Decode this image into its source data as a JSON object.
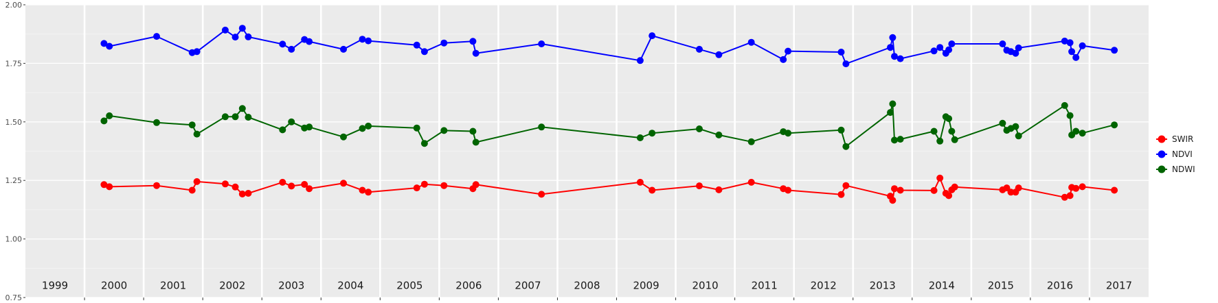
{
  "chart_data": {
    "type": "line",
    "title": "",
    "xlabel": "",
    "ylabel": "",
    "ylim": [
      0.75,
      2.0
    ],
    "y_ticks": [
      "0.75",
      "1.00",
      "1.25",
      "1.50",
      "1.75",
      "2.00"
    ],
    "xlim": [
      1999.0,
      2018.0
    ],
    "year_labels": [
      "1999",
      "2000",
      "2001",
      "2002",
      "2003",
      "2004",
      "2005",
      "2006",
      "2007",
      "2008",
      "2009",
      "2010",
      "2011",
      "2012",
      "2013",
      "2014",
      "2015",
      "2016",
      "2017"
    ],
    "grid": true,
    "legend_position": "right",
    "series": [
      {
        "name": "SWIR",
        "color": "#ff0000",
        "points": [
          [
            2000.33,
            1.232
          ],
          [
            2000.42,
            1.223
          ],
          [
            2001.22,
            1.228
          ],
          [
            2001.82,
            1.208
          ],
          [
            2001.9,
            1.245
          ],
          [
            2002.38,
            1.235
          ],
          [
            2002.55,
            1.222
          ],
          [
            2002.67,
            1.192
          ],
          [
            2002.77,
            1.195
          ],
          [
            2003.35,
            1.242
          ],
          [
            2003.5,
            1.226
          ],
          [
            2003.72,
            1.233
          ],
          [
            2003.8,
            1.215
          ],
          [
            2004.38,
            1.238
          ],
          [
            2004.7,
            1.208
          ],
          [
            2004.8,
            1.2
          ],
          [
            2005.62,
            1.218
          ],
          [
            2005.75,
            1.234
          ],
          [
            2006.08,
            1.228
          ],
          [
            2006.57,
            1.215
          ],
          [
            2006.62,
            1.232
          ],
          [
            2007.73,
            1.191
          ],
          [
            2009.4,
            1.242
          ],
          [
            2009.6,
            1.208
          ],
          [
            2010.4,
            1.227
          ],
          [
            2010.73,
            1.21
          ],
          [
            2011.28,
            1.242
          ],
          [
            2011.82,
            1.215
          ],
          [
            2011.9,
            1.208
          ],
          [
            2012.8,
            1.19
          ],
          [
            2012.88,
            1.228
          ],
          [
            2013.63,
            1.183
          ],
          [
            2013.67,
            1.165
          ],
          [
            2013.7,
            1.215
          ],
          [
            2013.8,
            1.208
          ],
          [
            2014.37,
            1.207
          ],
          [
            2014.47,
            1.26
          ],
          [
            2014.57,
            1.195
          ],
          [
            2014.62,
            1.185
          ],
          [
            2014.67,
            1.21
          ],
          [
            2014.72,
            1.222
          ],
          [
            2015.53,
            1.21
          ],
          [
            2015.6,
            1.218
          ],
          [
            2015.67,
            1.2
          ],
          [
            2015.75,
            1.2
          ],
          [
            2015.8,
            1.218
          ],
          [
            2016.58,
            1.178
          ],
          [
            2016.67,
            1.185
          ],
          [
            2016.7,
            1.22
          ],
          [
            2016.77,
            1.216
          ],
          [
            2016.88,
            1.223
          ],
          [
            2017.42,
            1.208
          ]
        ]
      },
      {
        "name": "NDVI",
        "color": "#0000ff",
        "points": [
          [
            2000.33,
            1.835
          ],
          [
            2000.42,
            1.823
          ],
          [
            2001.22,
            1.865
          ],
          [
            2001.82,
            1.796
          ],
          [
            2001.9,
            1.8
          ],
          [
            2002.38,
            1.892
          ],
          [
            2002.55,
            1.862
          ],
          [
            2002.67,
            1.9
          ],
          [
            2002.77,
            1.863
          ],
          [
            2003.35,
            1.832
          ],
          [
            2003.5,
            1.81
          ],
          [
            2003.72,
            1.852
          ],
          [
            2003.8,
            1.843
          ],
          [
            2004.38,
            1.81
          ],
          [
            2004.7,
            1.853
          ],
          [
            2004.8,
            1.846
          ],
          [
            2005.62,
            1.828
          ],
          [
            2005.75,
            1.8
          ],
          [
            2006.08,
            1.837
          ],
          [
            2006.57,
            1.844
          ],
          [
            2006.62,
            1.793
          ],
          [
            2007.73,
            1.833
          ],
          [
            2009.4,
            1.762
          ],
          [
            2009.6,
            1.868
          ],
          [
            2010.4,
            1.81
          ],
          [
            2010.73,
            1.787
          ],
          [
            2011.28,
            1.84
          ],
          [
            2011.82,
            1.766
          ],
          [
            2011.9,
            1.802
          ],
          [
            2012.8,
            1.798
          ],
          [
            2012.88,
            1.748
          ],
          [
            2013.63,
            1.818
          ],
          [
            2013.67,
            1.86
          ],
          [
            2013.7,
            1.78
          ],
          [
            2013.8,
            1.77
          ],
          [
            2014.37,
            1.803
          ],
          [
            2014.47,
            1.818
          ],
          [
            2014.57,
            1.793
          ],
          [
            2014.62,
            1.808
          ],
          [
            2014.67,
            1.833
          ],
          [
            2015.53,
            1.833
          ],
          [
            2015.6,
            1.806
          ],
          [
            2015.67,
            1.8
          ],
          [
            2015.75,
            1.793
          ],
          [
            2015.8,
            1.816
          ],
          [
            2016.58,
            1.845
          ],
          [
            2016.67,
            1.838
          ],
          [
            2016.7,
            1.8
          ],
          [
            2016.77,
            1.775
          ],
          [
            2016.88,
            1.825
          ],
          [
            2017.42,
            1.806
          ]
        ]
      },
      {
        "name": "NDWI",
        "color": "#006400",
        "points": [
          [
            2000.33,
            1.504
          ],
          [
            2000.42,
            1.526
          ],
          [
            2001.22,
            1.497
          ],
          [
            2001.82,
            1.487
          ],
          [
            2001.9,
            1.448
          ],
          [
            2002.38,
            1.522
          ],
          [
            2002.55,
            1.522
          ],
          [
            2002.67,
            1.557
          ],
          [
            2002.77,
            1.52
          ],
          [
            2003.35,
            1.466
          ],
          [
            2003.5,
            1.5
          ],
          [
            2003.72,
            1.474
          ],
          [
            2003.8,
            1.478
          ],
          [
            2004.38,
            1.436
          ],
          [
            2004.7,
            1.472
          ],
          [
            2004.8,
            1.482
          ],
          [
            2005.62,
            1.474
          ],
          [
            2005.75,
            1.408
          ],
          [
            2006.08,
            1.463
          ],
          [
            2006.57,
            1.46
          ],
          [
            2006.62,
            1.413
          ],
          [
            2007.73,
            1.478
          ],
          [
            2009.4,
            1.432
          ],
          [
            2009.6,
            1.452
          ],
          [
            2010.4,
            1.47
          ],
          [
            2010.73,
            1.444
          ],
          [
            2011.28,
            1.415
          ],
          [
            2011.82,
            1.458
          ],
          [
            2011.9,
            1.452
          ],
          [
            2012.8,
            1.465
          ],
          [
            2012.88,
            1.395
          ],
          [
            2013.63,
            1.54
          ],
          [
            2013.67,
            1.577
          ],
          [
            2013.7,
            1.422
          ],
          [
            2013.8,
            1.426
          ],
          [
            2014.37,
            1.46
          ],
          [
            2014.47,
            1.418
          ],
          [
            2014.57,
            1.522
          ],
          [
            2014.62,
            1.514
          ],
          [
            2014.67,
            1.46
          ],
          [
            2014.72,
            1.424
          ],
          [
            2015.53,
            1.494
          ],
          [
            2015.6,
            1.464
          ],
          [
            2015.67,
            1.472
          ],
          [
            2015.75,
            1.48
          ],
          [
            2015.8,
            1.44
          ],
          [
            2016.58,
            1.57
          ],
          [
            2016.67,
            1.527
          ],
          [
            2016.7,
            1.444
          ],
          [
            2016.77,
            1.46
          ],
          [
            2016.88,
            1.452
          ],
          [
            2017.42,
            1.487
          ]
        ]
      }
    ]
  }
}
